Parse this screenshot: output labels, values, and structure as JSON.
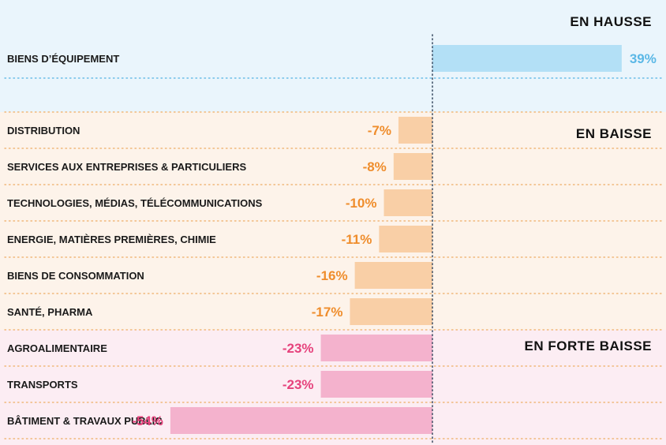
{
  "chart_data": {
    "type": "bar",
    "orientation": "horizontal",
    "unit": "%",
    "xlim": [
      -54,
      39
    ],
    "grid": false,
    "groups": [
      {
        "label": "EN HAUSSE",
        "background": "#eaf5fc",
        "bar_color": "#b3e0f6",
        "label_color": "#5bb8e6",
        "rows": [
          {
            "category": "BIENS D’ÉQUIPEMENT",
            "value": 39,
            "value_label": "39%"
          }
        ]
      },
      {
        "label": "EN BAISSE",
        "background": "#fdf3ea",
        "bar_color": "#f9cfa6",
        "label_color": "#ef8d2c",
        "rows": [
          {
            "category": "DISTRIBUTION",
            "value": -7,
            "value_label": "-7%"
          },
          {
            "category": "SERVICES AUX  ENTREPRISES & PARTICULIERS",
            "value": -8,
            "value_label": "-8%"
          },
          {
            "category": "TECHNOLOGIES, MÉDIAS, TÉLÉCOMMUNICATIONS",
            "value": -10,
            "value_label": "-10%"
          },
          {
            "category": "ENERGIE, MATIÈRES PREMIÈRES, CHIMIE",
            "value": -11,
            "value_label": "-11%"
          },
          {
            "category": "BIENS DE CONSOMMATION",
            "value": -16,
            "value_label": "-16%"
          },
          {
            "category": "SANTÉ, PHARMA",
            "value": -17,
            "value_label": "-17%"
          }
        ]
      },
      {
        "label": "EN FORTE BAISSE",
        "background": "#fcedf3",
        "bar_color": "#f4b2cd",
        "label_color": "#e6427c",
        "rows": [
          {
            "category": "AGROALIMENTAIRE",
            "value": -23,
            "value_label": "-23%"
          },
          {
            "category": "TRANSPORTS",
            "value": -23,
            "value_label": "-23%"
          },
          {
            "category": "BÂTIMENT & TRAVAUX PUBLIC",
            "value": -54,
            "value_label": "-54%"
          }
        ]
      }
    ],
    "colors": {
      "separator": "#f0b87a",
      "separator_top": "#6bbde6",
      "axis_line": "#2a3d55"
    }
  }
}
